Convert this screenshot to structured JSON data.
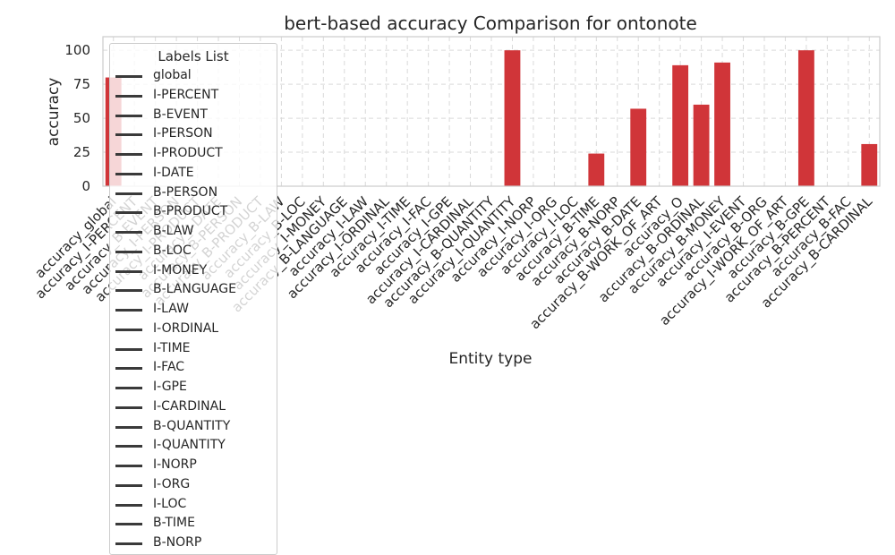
{
  "chart_data": {
    "type": "bar",
    "title": "bert-based  accuracy Comparison for ontonote",
    "xlabel": "Entity type",
    "ylabel": "accuracy",
    "ylim": [
      0,
      110
    ],
    "yticks": [
      0,
      25,
      50,
      75,
      100
    ],
    "grid": true,
    "legend_title": "Labels List",
    "legend_position": "upper left",
    "bar_color": "#d03539",
    "categories": [
      "accuracy_global",
      "accuracy_I-PERCENT",
      "accuracy_B-EVENT",
      "accuracy_I-PERSON",
      "accuracy_I-PRODUCT",
      "accuracy_I-DATE",
      "accuracy_B-PERSON",
      "accuracy_B-PRODUCT",
      "accuracy_B-LAW",
      "accuracy_B-LOC",
      "accuracy_I-MONEY",
      "accuracy_B-LANGUAGE",
      "accuracy_I-LAW",
      "accuracy_I-ORDINAL",
      "accuracy_I-TIME",
      "accuracy_I-FAC",
      "accuracy_I-GPE",
      "accuracy_I-CARDINAL",
      "accuracy_B-QUANTITY",
      "accuracy_I-QUANTITY",
      "accuracy_I-NORP",
      "accuracy_I-ORG",
      "accuracy_I-LOC",
      "accuracy_B-TIME",
      "accuracy_B-NORP",
      "accuracy_B-DATE",
      "accuracy_B-WORK_OF_ART",
      "accuracy_O",
      "accuracy_B-ORDINAL",
      "accuracy_B-MONEY",
      "accuracy_I-EVENT",
      "accuracy_B-ORG",
      "accuracy_I-WORK_OF_ART",
      "accuracy_B-GPE",
      "accuracy_B-PERCENT",
      "accuracy_B-FAC",
      "accuracy_B-CARDINAL"
    ],
    "values": [
      80,
      0,
      0,
      0,
      0,
      0,
      0,
      0,
      0,
      0,
      0,
      0,
      0,
      0,
      0,
      0,
      0,
      0,
      0,
      100,
      0,
      0,
      0,
      24,
      0,
      57,
      0,
      89,
      60,
      91,
      0,
      0,
      0,
      100,
      0,
      0,
      31
    ],
    "legend": [
      "global",
      "I-PERCENT",
      "B-EVENT",
      "I-PERSON",
      "I-PRODUCT",
      "I-DATE",
      "B-PERSON",
      "B-PRODUCT",
      "B-LAW",
      "B-LOC",
      "I-MONEY",
      "B-LANGUAGE",
      "I-LAW",
      "I-ORDINAL",
      "I-TIME",
      "I-FAC",
      "I-GPE",
      "I-CARDINAL",
      "B-QUANTITY",
      "I-QUANTITY",
      "I-NORP",
      "I-ORG",
      "I-LOC",
      "B-TIME",
      "B-NORP"
    ]
  }
}
